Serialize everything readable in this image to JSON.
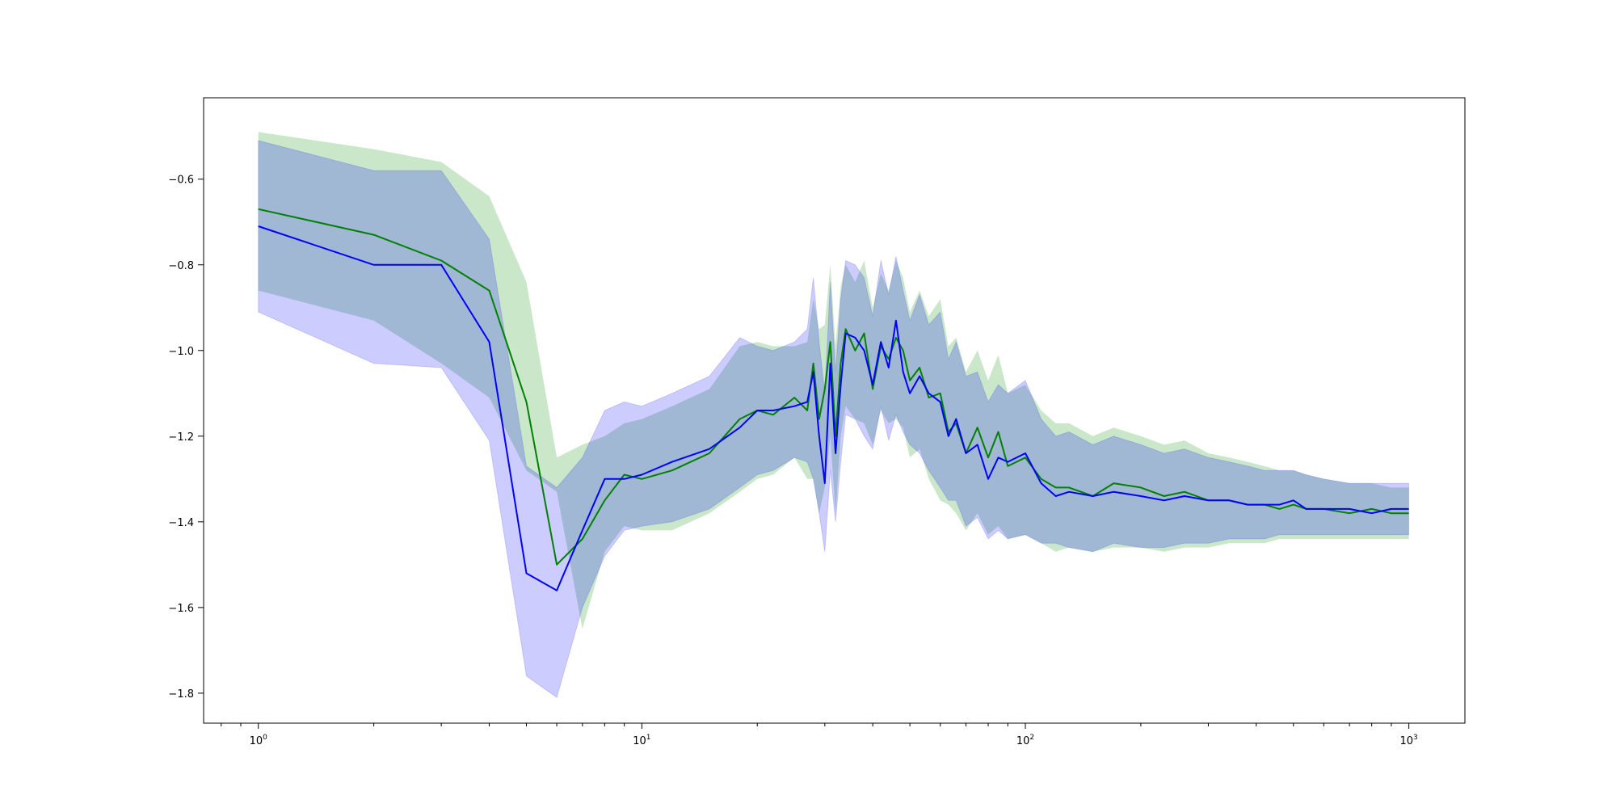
{
  "chart_data": {
    "type": "line",
    "title": "",
    "xlabel": "",
    "ylabel": "",
    "xscale": "log",
    "xlim": [
      0.72,
      1400
    ],
    "ylim": [
      -1.87,
      -0.41
    ],
    "grid": false,
    "legend": "none",
    "x_ticks": [
      {
        "base": "10",
        "exp": "0",
        "value": 1
      },
      {
        "base": "10",
        "exp": "1",
        "value": 10
      },
      {
        "base": "10",
        "exp": "2",
        "value": 100
      },
      {
        "base": "10",
        "exp": "3",
        "value": 1000
      }
    ],
    "y_ticks": [
      {
        "label": "−0.6",
        "value": -0.6
      },
      {
        "label": "−0.8",
        "value": -0.8
      },
      {
        "label": "−1.0",
        "value": -1.0
      },
      {
        "label": "−1.2",
        "value": -1.2
      },
      {
        "label": "−1.4",
        "value": -1.4
      },
      {
        "label": "−1.6",
        "value": -1.6
      },
      {
        "label": "−1.8",
        "value": -1.8
      }
    ],
    "x": [
      1,
      2,
      3,
      4,
      5,
      6,
      7,
      8,
      9,
      10,
      12,
      15,
      18,
      20,
      22,
      25,
      27,
      28,
      29,
      30,
      31,
      32,
      33,
      34,
      36,
      38,
      40,
      42,
      44,
      46,
      48,
      50,
      53,
      56,
      60,
      63,
      66,
      70,
      75,
      80,
      85,
      90,
      100,
      110,
      120,
      130,
      150,
      170,
      200,
      230,
      260,
      300,
      340,
      380,
      420,
      460,
      500,
      540,
      600,
      700,
      800,
      900,
      1000
    ],
    "series": [
      {
        "color": "#008000",
        "band_color": "#2ca02c",
        "band_opacity": 0.25,
        "mean": [
          -0.67,
          -0.73,
          -0.79,
          -0.86,
          -1.12,
          -1.5,
          -1.44,
          -1.35,
          -1.29,
          -1.3,
          -1.28,
          -1.24,
          -1.16,
          -1.14,
          -1.15,
          -1.11,
          -1.14,
          -1.03,
          -1.16,
          -1.09,
          -0.98,
          -1.2,
          -1.03,
          -0.95,
          -1.0,
          -0.96,
          -1.09,
          -0.99,
          -1.02,
          -0.97,
          -1.0,
          -1.07,
          -1.04,
          -1.11,
          -1.1,
          -1.19,
          -1.17,
          -1.24,
          -1.18,
          -1.25,
          -1.19,
          -1.27,
          -1.25,
          -1.3,
          -1.32,
          -1.32,
          -1.34,
          -1.31,
          -1.32,
          -1.34,
          -1.33,
          -1.35,
          -1.35,
          -1.36,
          -1.36,
          -1.37,
          -1.36,
          -1.37,
          -1.37,
          -1.38,
          -1.37,
          -1.38,
          -1.38
        ],
        "lower": [
          -0.86,
          -0.93,
          -1.03,
          -1.11,
          -1.28,
          -1.33,
          -1.65,
          -1.47,
          -1.41,
          -1.42,
          -1.42,
          -1.38,
          -1.33,
          -1.3,
          -1.29,
          -1.25,
          -1.3,
          -1.3,
          -1.38,
          -1.32,
          -1.2,
          -1.38,
          -1.2,
          -1.13,
          -1.16,
          -1.17,
          -1.22,
          -1.14,
          -1.17,
          -1.16,
          -1.18,
          -1.25,
          -1.23,
          -1.3,
          -1.35,
          -1.36,
          -1.38,
          -1.42,
          -1.38,
          -1.43,
          -1.41,
          -1.44,
          -1.43,
          -1.45,
          -1.47,
          -1.46,
          -1.47,
          -1.46,
          -1.46,
          -1.47,
          -1.46,
          -1.46,
          -1.45,
          -1.45,
          -1.45,
          -1.44,
          -1.44,
          -1.44,
          -1.44,
          -1.44,
          -1.44,
          -1.44,
          -1.44
        ],
        "upper": [
          -0.49,
          -0.53,
          -0.56,
          -0.64,
          -0.84,
          -1.25,
          -1.22,
          -1.2,
          -1.17,
          -1.16,
          -1.13,
          -1.09,
          -0.99,
          -0.98,
          -0.99,
          -0.99,
          -0.98,
          -0.88,
          -0.95,
          -0.94,
          -0.8,
          -0.99,
          -0.85,
          -0.8,
          -0.84,
          -0.79,
          -0.9,
          -0.82,
          -0.86,
          -0.79,
          -0.83,
          -0.91,
          -0.86,
          -0.92,
          -0.88,
          -0.99,
          -0.97,
          -1.05,
          -1.0,
          -1.07,
          -1.01,
          -1.1,
          -1.08,
          -1.14,
          -1.17,
          -1.17,
          -1.2,
          -1.18,
          -1.2,
          -1.22,
          -1.21,
          -1.24,
          -1.25,
          -1.26,
          -1.27,
          -1.28,
          -1.28,
          -1.29,
          -1.3,
          -1.31,
          -1.31,
          -1.32,
          -1.32
        ]
      },
      {
        "color": "#0000ff",
        "band_color": "#0000ff",
        "band_opacity": 0.2,
        "mean": [
          -0.71,
          -0.8,
          -0.8,
          -0.98,
          -1.52,
          -1.56,
          -1.42,
          -1.3,
          -1.3,
          -1.29,
          -1.26,
          -1.23,
          -1.18,
          -1.14,
          -1.14,
          -1.13,
          -1.12,
          -1.05,
          -1.2,
          -1.31,
          -1.03,
          -1.24,
          -1.08,
          -0.96,
          -0.97,
          -1.0,
          -1.08,
          -0.98,
          -1.04,
          -0.93,
          -1.05,
          -1.1,
          -1.06,
          -1.1,
          -1.12,
          -1.2,
          -1.16,
          -1.24,
          -1.22,
          -1.3,
          -1.25,
          -1.26,
          -1.24,
          -1.31,
          -1.34,
          -1.33,
          -1.34,
          -1.33,
          -1.34,
          -1.35,
          -1.34,
          -1.35,
          -1.35,
          -1.36,
          -1.36,
          -1.36,
          -1.35,
          -1.37,
          -1.37,
          -1.37,
          -1.38,
          -1.37,
          -1.37
        ]
      }
    ],
    "blue_band": {
      "lower": [
        -0.91,
        -1.03,
        -1.04,
        -1.21,
        -1.76,
        -1.81,
        -1.6,
        -1.48,
        -1.42,
        -1.41,
        -1.4,
        -1.37,
        -1.32,
        -1.29,
        -1.28,
        -1.25,
        -1.26,
        -1.3,
        -1.38,
        -1.47,
        -1.28,
        -1.4,
        -1.26,
        -1.15,
        -1.16,
        -1.2,
        -1.23,
        -1.13,
        -1.21,
        -1.15,
        -1.19,
        -1.22,
        -1.24,
        -1.28,
        -1.32,
        -1.35,
        -1.35,
        -1.41,
        -1.39,
        -1.44,
        -1.42,
        -1.44,
        -1.43,
        -1.45,
        -1.45,
        -1.46,
        -1.47,
        -1.45,
        -1.46,
        -1.46,
        -1.45,
        -1.45,
        -1.44,
        -1.44,
        -1.44,
        -1.43,
        -1.43,
        -1.43,
        -1.43,
        -1.43,
        -1.43,
        -1.43,
        -1.43
      ],
      "upper": [
        -0.51,
        -0.58,
        -0.58,
        -0.74,
        -1.27,
        -1.32,
        -1.25,
        -1.14,
        -1.12,
        -1.13,
        -1.1,
        -1.06,
        -0.97,
        -0.99,
        -1.0,
        -0.98,
        -0.95,
        -0.83,
        -0.98,
        -1.1,
        -0.84,
        -1.05,
        -0.88,
        -0.79,
        -0.8,
        -0.83,
        -0.92,
        -0.79,
        -0.87,
        -0.78,
        -0.86,
        -0.93,
        -0.87,
        -0.94,
        -0.91,
        -1.02,
        -0.98,
        -1.06,
        -1.05,
        -1.12,
        -1.08,
        -1.1,
        -1.07,
        -1.16,
        -1.2,
        -1.19,
        -1.22,
        -1.2,
        -1.22,
        -1.24,
        -1.23,
        -1.25,
        -1.26,
        -1.27,
        -1.28,
        -1.28,
        -1.28,
        -1.29,
        -1.3,
        -1.31,
        -1.31,
        -1.31,
        -1.31
      ]
    }
  }
}
